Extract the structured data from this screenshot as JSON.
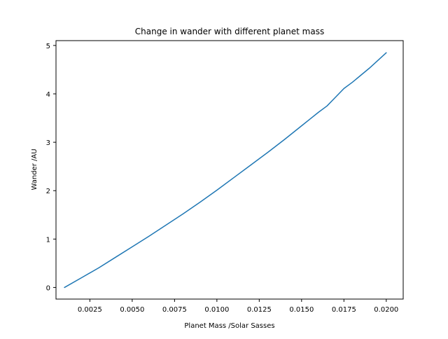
{
  "chart_data": {
    "type": "line",
    "title": "Change in wander with different planet mass",
    "xlabel": "Planet Mass /Solar Sasses",
    "ylabel": "Wander /AU",
    "xlim": [
      0.0005,
      0.021
    ],
    "ylim": [
      -0.24,
      5.1
    ],
    "xticks": [
      0.0025,
      0.005,
      0.0075,
      0.01,
      0.0125,
      0.015,
      0.0175,
      0.02
    ],
    "xtick_labels": [
      "0.0025",
      "0.0050",
      "0.0075",
      "0.0100",
      "0.0125",
      "0.0150",
      "0.0175",
      "0.0200"
    ],
    "yticks": [
      0,
      1,
      2,
      3,
      4,
      5
    ],
    "ytick_labels": [
      "0",
      "1",
      "2",
      "3",
      "4",
      "5"
    ],
    "grid": false,
    "series": [
      {
        "color": "#1f77b4",
        "x": [
          0.001,
          0.002,
          0.003,
          0.004,
          0.005,
          0.006,
          0.007,
          0.008,
          0.009,
          0.01,
          0.011,
          0.012,
          0.013,
          0.014,
          0.015,
          0.0155,
          0.016,
          0.0165,
          0.017,
          0.0175,
          0.018,
          0.019,
          0.02
        ],
        "y": [
          0.0,
          0.2,
          0.4,
          0.62,
          0.84,
          1.06,
          1.29,
          1.52,
          1.76,
          2.01,
          2.27,
          2.53,
          2.79,
          3.06,
          3.34,
          3.48,
          3.62,
          3.75,
          3.93,
          4.11,
          4.24,
          4.53,
          4.85
        ]
      }
    ]
  }
}
